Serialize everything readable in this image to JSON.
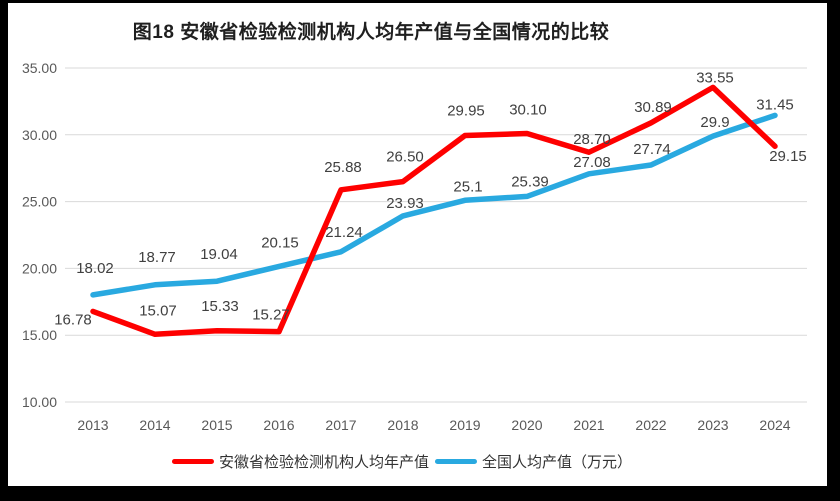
{
  "chart_data": {
    "type": "line",
    "title": "图18 安徽省检验检测机构人均年产值与全国情况的比较",
    "categories": [
      "2013",
      "2014",
      "2015",
      "2016",
      "2017",
      "2018",
      "2019",
      "2020",
      "2021",
      "2022",
      "2023",
      "2024"
    ],
    "y_axis": {
      "min": 10,
      "max": 35,
      "step": 5,
      "tick_labels_top_to_bottom": [
        "35.00",
        "30.00",
        "25.00",
        "20.00",
        "15.00",
        "10.00"
      ]
    },
    "grid": true,
    "legend_position": "bottom",
    "series": [
      {
        "name": "安徽省检验检测机构人均年产值",
        "color": "#FE0000",
        "values": [
          16.78,
          15.07,
          15.33,
          15.27,
          25.88,
          26.5,
          29.95,
          30.1,
          28.7,
          30.89,
          33.55,
          29.15
        ],
        "value_labels": [
          "16.78",
          "15.07",
          "15.33",
          "15.27",
          "25.88",
          "26.50",
          "29.95",
          "30.10",
          "28.70",
          "30.89",
          "33.55",
          "29.15"
        ]
      },
      {
        "name": "全国人均产值（万元）",
        "color": "#29A9E0",
        "values": [
          18.02,
          18.77,
          19.04,
          20.15,
          21.24,
          23.93,
          25.1,
          25.39,
          27.08,
          27.74,
          29.9,
          31.45
        ],
        "value_labels": [
          "18.02",
          "18.77",
          "19.04",
          "20.15",
          "21.24",
          "23.93",
          "25.1",
          "25.39",
          "27.08",
          "27.74",
          "29.9",
          "31.45"
        ]
      }
    ]
  }
}
